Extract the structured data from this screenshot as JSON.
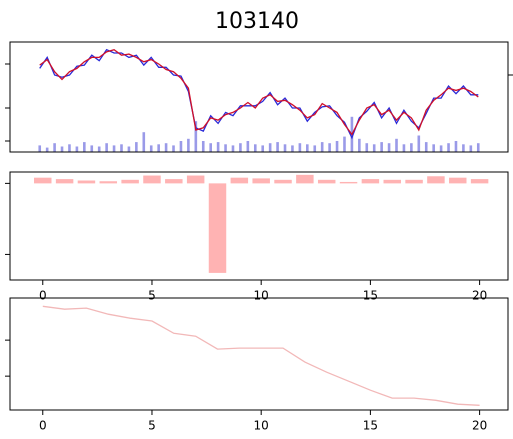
{
  "chart_data": [
    {
      "type": "line",
      "title": "103140",
      "x": [
        0,
        1,
        2,
        3,
        4,
        5,
        6,
        7,
        8,
        9,
        10,
        11,
        12,
        13,
        14,
        15,
        16,
        17,
        18,
        19,
        20,
        21,
        22,
        23,
        24,
        25,
        26,
        27,
        28,
        29,
        30,
        31,
        32,
        33,
        34,
        35,
        36,
        37,
        38,
        39,
        40,
        41,
        42,
        43,
        44,
        45,
        46,
        47,
        48,
        49,
        50,
        51,
        52,
        53,
        54,
        55,
        56,
        57,
        58,
        59
      ],
      "xlim": [
        -4,
        63
      ],
      "ylim": [
        0,
        100
      ],
      "yticks": [
        10,
        40,
        80
      ],
      "y2lim": [
        0,
        100
      ],
      "y2ticks": [
        70
      ],
      "show_ytick_labels": false,
      "series": [
        {
          "color": "#2a2ad8",
          "values": [
            76,
            86,
            70,
            68,
            70,
            78,
            79,
            88,
            83,
            93,
            90,
            90,
            86,
            88,
            79,
            86,
            77,
            77,
            70,
            69,
            55,
            22,
            19,
            33,
            26,
            36,
            33,
            42,
            42,
            42,
            46,
            54,
            43,
            49,
            40,
            40,
            28,
            36,
            41,
            42,
            33,
            27,
            13,
            31,
            37,
            45,
            31,
            40,
            26,
            38,
            28,
            22,
            35,
            49,
            49,
            60,
            53,
            60,
            52,
            52
          ]
        },
        {
          "color": "#d0102a",
          "values": [
            79,
            84,
            73,
            66,
            73,
            76,
            82,
            86,
            86,
            91,
            93,
            88,
            89,
            86,
            82,
            84,
            80,
            75,
            73,
            67,
            58,
            20,
            22,
            31,
            29,
            34,
            36,
            40,
            45,
            40,
            49,
            52,
            46,
            47,
            43,
            38,
            31,
            34,
            44,
            40,
            36,
            25,
            16,
            29,
            40,
            43,
            34,
            38,
            29,
            36,
            31,
            20,
            38,
            47,
            52,
            58,
            56,
            58,
            55,
            50
          ]
        },
        {
          "color": "#9a9ae8",
          "type": "bar",
          "axis": "y2",
          "values": [
            6,
            4,
            8,
            5,
            7,
            5,
            9,
            6,
            5,
            8,
            6,
            7,
            5,
            9,
            18,
            6,
            7,
            8,
            6,
            10,
            12,
            28,
            10,
            8,
            9,
            7,
            6,
            8,
            10,
            7,
            6,
            8,
            9,
            7,
            6,
            8,
            7,
            6,
            9,
            8,
            10,
            14,
            32,
            12,
            8,
            7,
            9,
            8,
            12,
            7,
            8,
            15,
            9,
            7,
            6,
            8,
            10,
            7,
            6,
            8
          ]
        }
      ]
    },
    {
      "type": "bar",
      "x": [
        0,
        1,
        2,
        3,
        4,
        5,
        6,
        7,
        8,
        9,
        10,
        11,
        12,
        13,
        14,
        15,
        16,
        17,
        18,
        19,
        20
      ],
      "values": [
        4,
        3,
        2,
        1.5,
        2.5,
        5.5,
        3,
        5.5,
        -63,
        4,
        3.5,
        2.5,
        6,
        2.5,
        1,
        3,
        2.5,
        2.5,
        5,
        4,
        3
      ],
      "color": "#ffb3b3",
      "xlim": [
        -1.5,
        21.3
      ],
      "ylim": [
        -68,
        8
      ],
      "yticks": [
        0,
        -50
      ],
      "xticks": [
        0,
        5,
        10,
        15,
        20
      ],
      "show_ytick_labels": false
    },
    {
      "type": "line",
      "x": [
        0,
        1,
        2,
        3,
        4,
        5,
        6,
        7,
        8,
        9,
        10,
        11,
        12,
        13,
        14,
        15,
        16,
        17,
        18,
        19,
        20
      ],
      "series": [
        {
          "color": "#f2b8b8",
          "values": [
            29.4,
            28.6,
            28.9,
            27.2,
            26.1,
            25.3,
            21.9,
            21.1,
            17.5,
            17.8,
            17.8,
            17.8,
            13.9,
            11.1,
            8.6,
            6.1,
            3.9,
            3.9,
            3.3,
            2.2,
            1.9
          ]
        }
      ],
      "xlim": [
        -1.5,
        21.3
      ],
      "ylim": [
        0.6,
        31.7
      ],
      "yticks": [
        10,
        20
      ],
      "xticks": [
        0,
        5,
        10,
        15,
        20
      ],
      "show_ytick_labels": false
    }
  ]
}
